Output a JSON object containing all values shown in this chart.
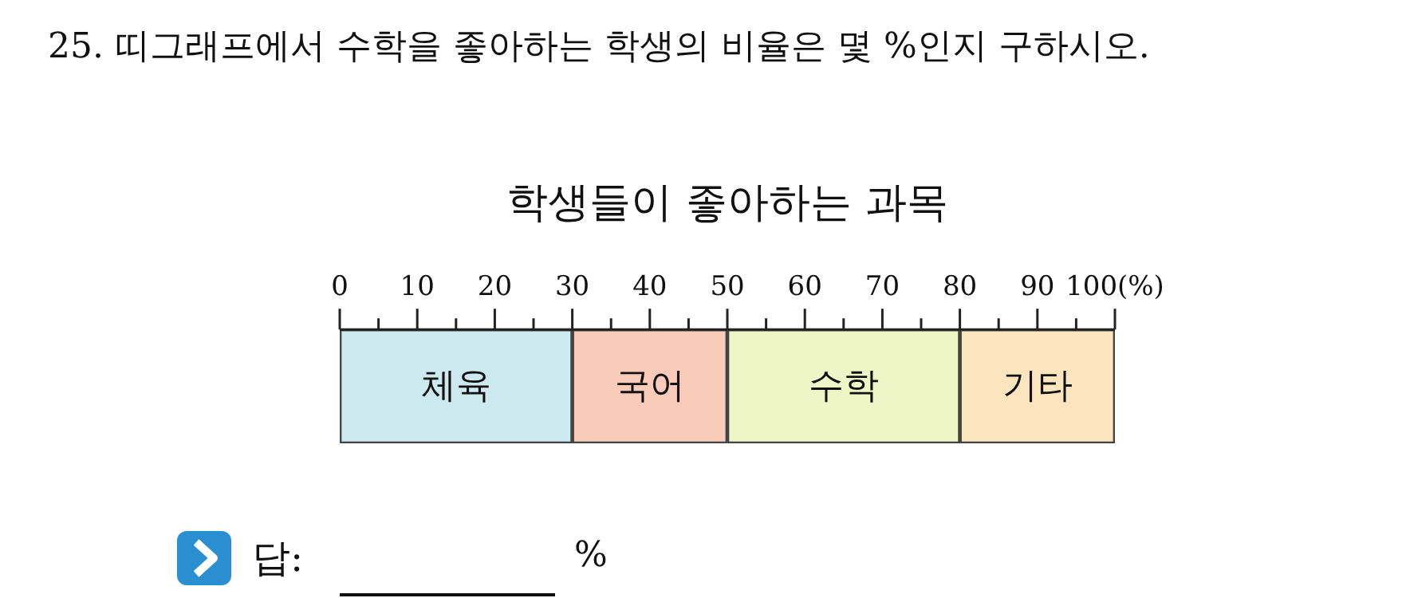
{
  "chart_data": {
    "type": "bar",
    "title": "학생들이 좋아하는 과목",
    "orientation": "horizontal",
    "stacked": true,
    "tick_labels": "x",
    "categories": [
      null
    ],
    "series": [
      {
        "name": "체육",
        "color": "#cde9f0",
        "values": [
          30
        ]
      },
      {
        "name": "국어",
        "color": "#f9cbb8",
        "values": [
          20
        ]
      },
      {
        "name": "수학",
        "color": "#eef5c6",
        "values": [
          30
        ]
      },
      {
        "name": "기타",
        "color": "#fbe5bf",
        "values": [
          20
        ]
      }
    ],
    "xlim": [
      0,
      100
    ],
    "xticks": [
      0,
      {
        "value": 5,
        "label": null
      },
      10,
      {
        "value": 15,
        "label": null
      },
      20,
      {
        "value": 25,
        "label": null
      },
      30,
      {
        "value": 35,
        "label": null
      },
      40,
      {
        "value": 45,
        "label": null
      },
      50,
      {
        "value": 55,
        "label": null
      },
      60,
      {
        "value": 65,
        "label": null
      },
      70,
      {
        "value": 75,
        "label": null
      },
      80,
      {
        "value": 85,
        "label": null
      },
      90,
      {
        "value": 95,
        "label": null
      },
      {
        "value": 100,
        "label": "100(%)"
      }
    ],
    "annotations": [
      "25. 띠그래프에서 수학을 좋아하는 학생의 비율은 몇 %인지 구하시오.",
      "답:",
      "%"
    ]
  }
}
